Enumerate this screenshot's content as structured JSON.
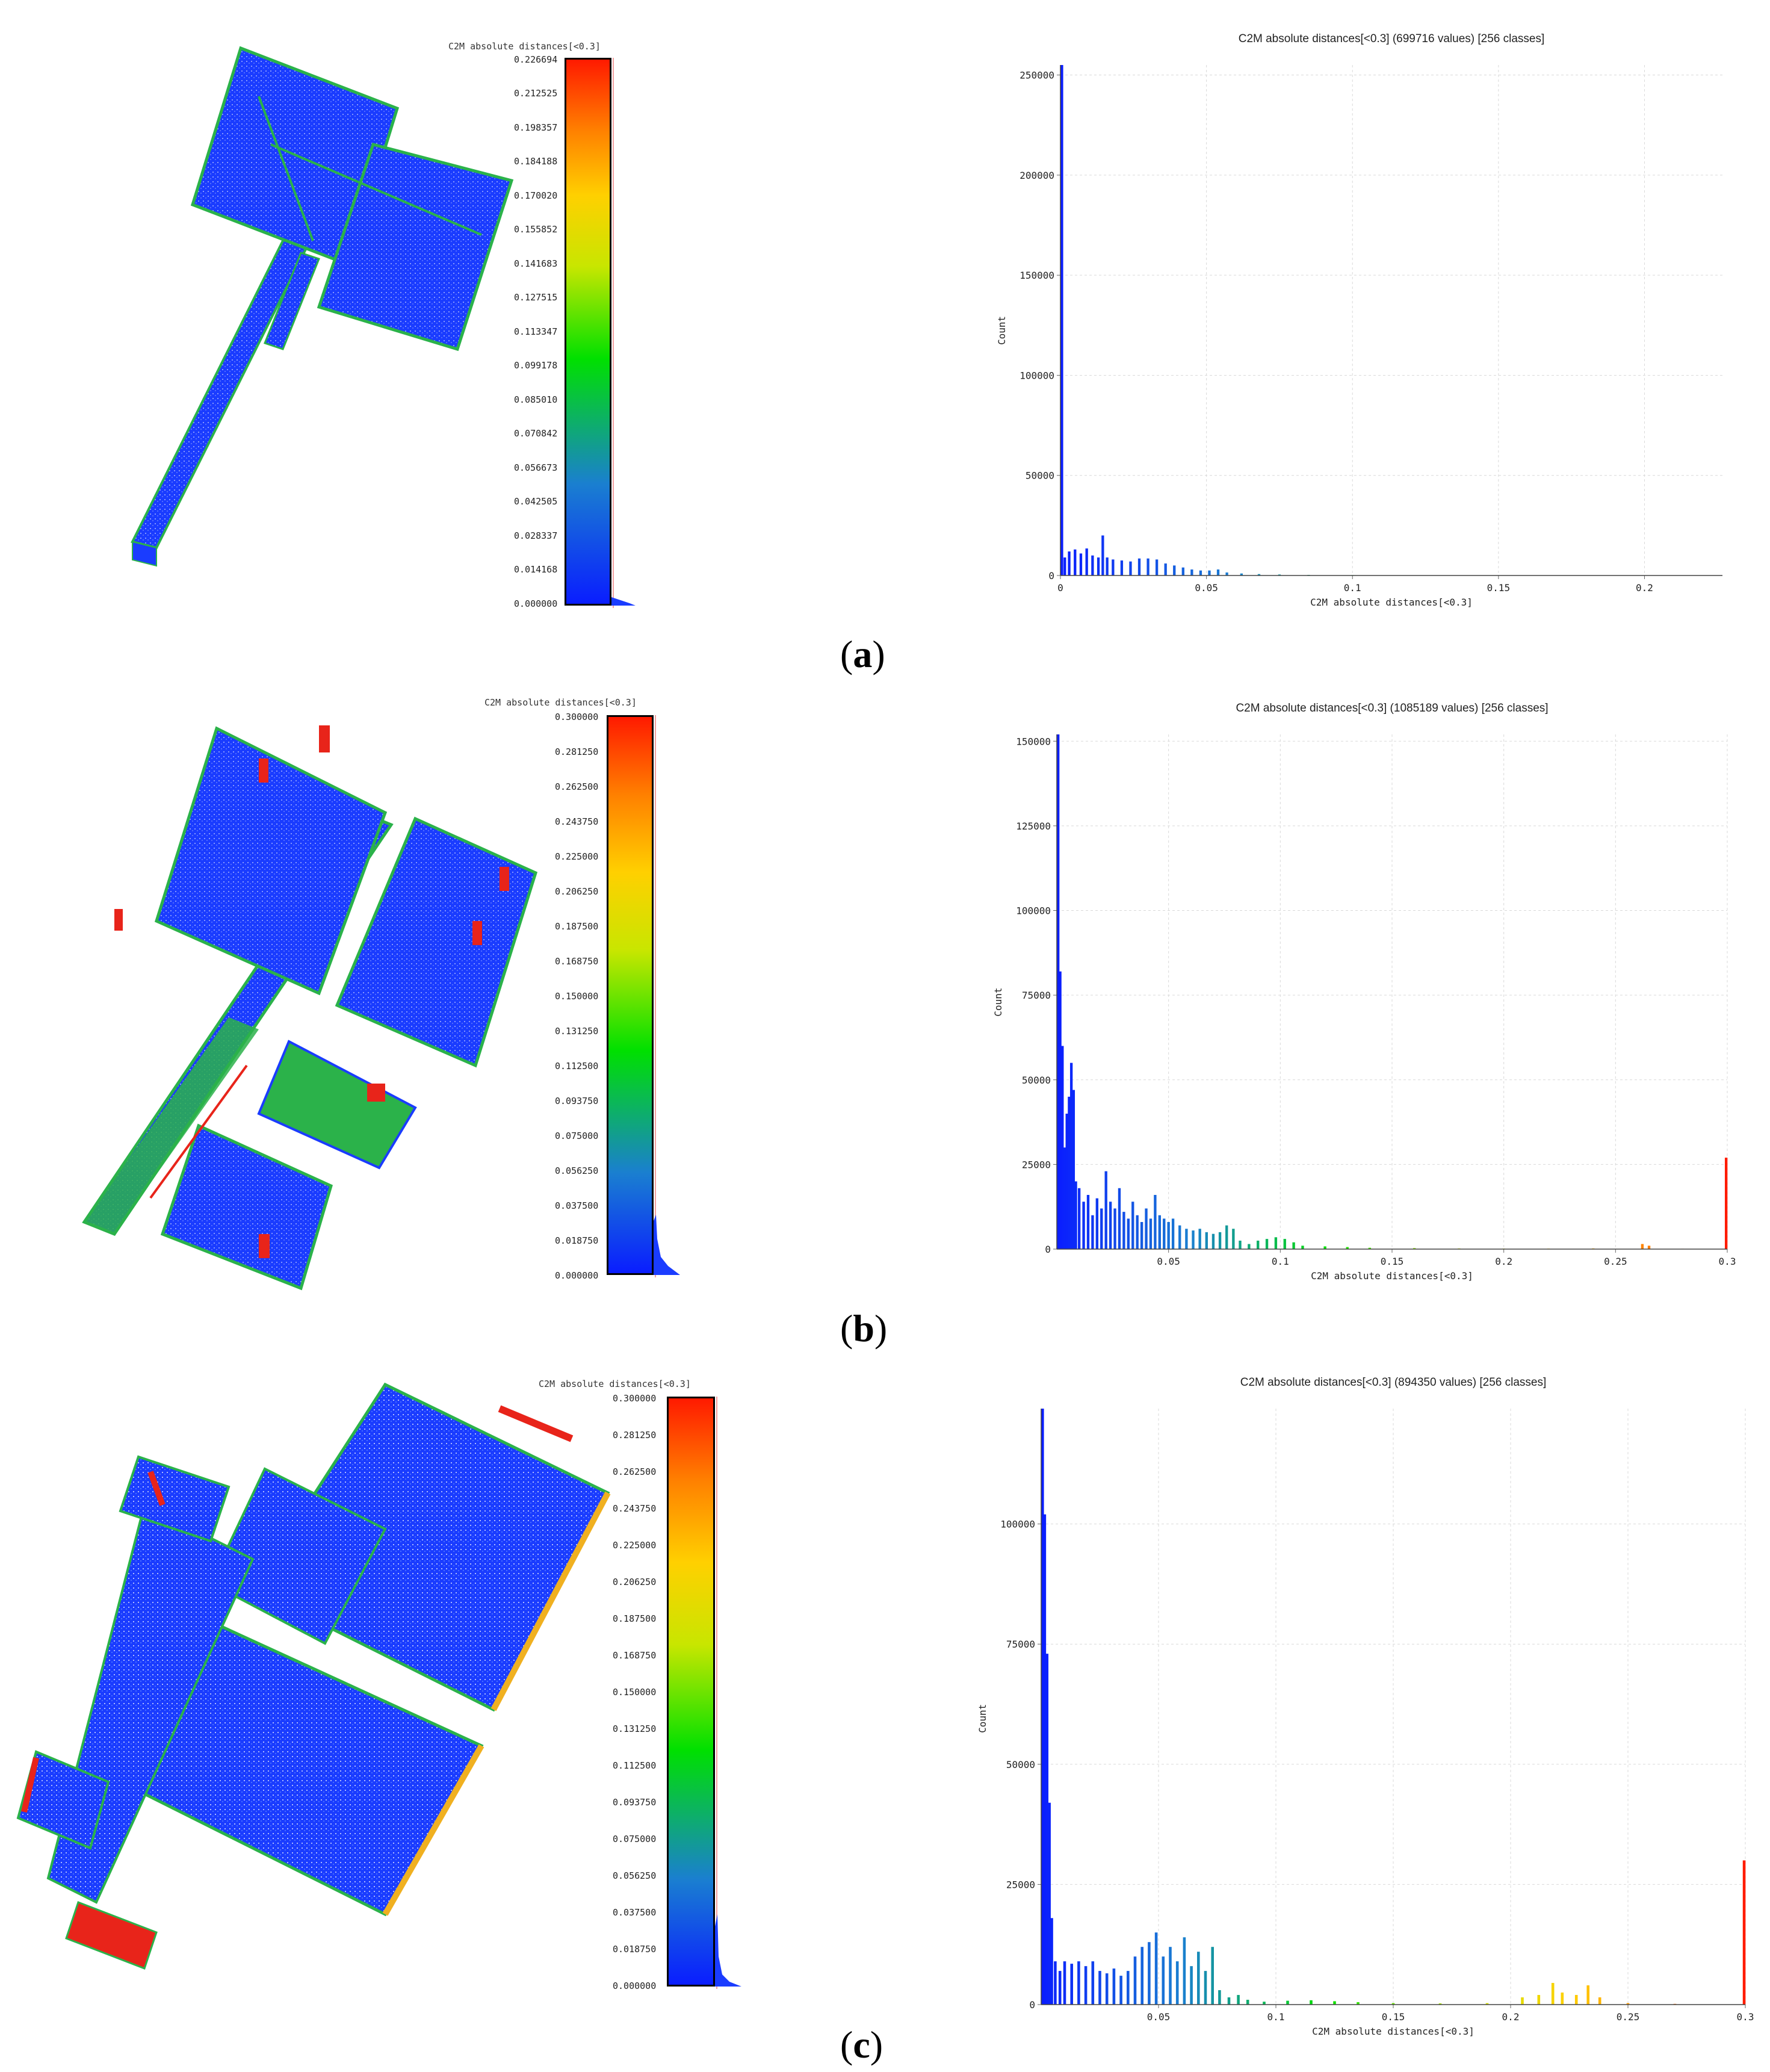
{
  "figure": {
    "captions": [
      {
        "open": "(",
        "letter": "a",
        "close": ")"
      },
      {
        "open": "(",
        "letter": "b",
        "close": ")"
      },
      {
        "open": "(",
        "letter": "c",
        "close": ")"
      }
    ]
  },
  "colors": {
    "scale_gradient": [
      "#0a1dff",
      "#1a7fd0",
      "#00e000",
      "#c8e600",
      "#ffd000",
      "#ff8000",
      "#ff1a00"
    ],
    "model_blue": "#1a3cff",
    "model_green": "#2bb24a",
    "model_red": "#e8241a",
    "grid": "#d9d9d9"
  },
  "panels": [
    {
      "scale": {
        "title": "C2M absolute distances[<0.3]",
        "ticks": [
          "0.226694",
          "0.212525",
          "0.198357",
          "0.184188",
          "0.170020",
          "0.155852",
          "0.141683",
          "0.127515",
          "0.113347",
          "0.099178",
          "0.085010",
          "0.070842",
          "0.056673",
          "0.042505",
          "0.028337",
          "0.014168",
          "0.000000"
        ]
      }
    },
    {
      "scale": {
        "title": "C2M absolute distances[<0.3]",
        "ticks": [
          "0.300000",
          "0.281250",
          "0.262500",
          "0.243750",
          "0.225000",
          "0.206250",
          "0.187500",
          "0.168750",
          "0.150000",
          "0.131250",
          "0.112500",
          "0.093750",
          "0.075000",
          "0.056250",
          "0.037500",
          "0.018750",
          "0.000000"
        ]
      }
    },
    {
      "scale": {
        "title": "C2M absolute distances[<0.3]",
        "ticks": [
          "0.300000",
          "0.281250",
          "0.262500",
          "0.243750",
          "0.225000",
          "0.206250",
          "0.187500",
          "0.168750",
          "0.150000",
          "0.131250",
          "0.112500",
          "0.093750",
          "0.075000",
          "0.056250",
          "0.037500",
          "0.018750",
          "0.000000"
        ]
      }
    }
  ],
  "chart_data": [
    {
      "type": "bar",
      "title": "C2M absolute distances[<0.3] (699716 values)  [256 classes]",
      "xlabel": "C2M absolute distances[<0.3]",
      "ylabel": "Count",
      "xlim": [
        0,
        0.226694
      ],
      "ylim": [
        0,
        255000
      ],
      "xticks": [
        0,
        0.05,
        0.1,
        0.15,
        0.2
      ],
      "xtick_labels": [
        "0",
        "0.05",
        "0.1",
        "0.15",
        "0.2"
      ],
      "yticks": [
        0,
        50000,
        100000,
        150000,
        200000,
        250000
      ],
      "ytick_labels": [
        "0",
        "50000",
        "100000",
        "150000",
        "200000",
        "250000"
      ],
      "grid": true,
      "bins": [
        {
          "x": 0.0005,
          "y": 255000
        },
        {
          "x": 0.0015,
          "y": 9000
        },
        {
          "x": 0.003,
          "y": 12000
        },
        {
          "x": 0.005,
          "y": 13000
        },
        {
          "x": 0.007,
          "y": 11000
        },
        {
          "x": 0.009,
          "y": 13500
        },
        {
          "x": 0.011,
          "y": 10000
        },
        {
          "x": 0.013,
          "y": 9000
        },
        {
          "x": 0.0145,
          "y": 20000
        },
        {
          "x": 0.016,
          "y": 9000
        },
        {
          "x": 0.018,
          "y": 8000
        },
        {
          "x": 0.021,
          "y": 7500
        },
        {
          "x": 0.024,
          "y": 7000
        },
        {
          "x": 0.027,
          "y": 8500
        },
        {
          "x": 0.03,
          "y": 8500
        },
        {
          "x": 0.033,
          "y": 8000
        },
        {
          "x": 0.036,
          "y": 6000
        },
        {
          "x": 0.039,
          "y": 5000
        },
        {
          "x": 0.042,
          "y": 4000
        },
        {
          "x": 0.045,
          "y": 3000
        },
        {
          "x": 0.048,
          "y": 2500
        },
        {
          "x": 0.051,
          "y": 2500
        },
        {
          "x": 0.054,
          "y": 3000
        },
        {
          "x": 0.057,
          "y": 1500
        },
        {
          "x": 0.062,
          "y": 1000
        },
        {
          "x": 0.068,
          "y": 700
        },
        {
          "x": 0.075,
          "y": 500
        },
        {
          "x": 0.085,
          "y": 300
        },
        {
          "x": 0.1,
          "y": 200
        },
        {
          "x": 0.12,
          "y": 120
        },
        {
          "x": 0.15,
          "y": 80
        },
        {
          "x": 0.18,
          "y": 60
        },
        {
          "x": 0.21,
          "y": 40
        }
      ]
    },
    {
      "type": "bar",
      "title": "C2M absolute distances[<0.3] (1085189 values)  [256 classes]",
      "xlabel": "C2M absolute distances[<0.3]",
      "ylabel": "Count",
      "xlim": [
        0,
        0.3
      ],
      "ylim": [
        0,
        152000
      ],
      "xticks": [
        0.05,
        0.1,
        0.15,
        0.2,
        0.25,
        0.3
      ],
      "xtick_labels": [
        "0.05",
        "0.1",
        "0.15",
        "0.2",
        "0.25",
        "0.3"
      ],
      "yticks": [
        0,
        25000,
        50000,
        75000,
        100000,
        125000,
        150000
      ],
      "ytick_labels": [
        "0",
        "25000",
        "50000",
        "75000",
        "100000",
        "125000",
        "150000"
      ],
      "grid": true,
      "bins": [
        {
          "x": 0.0005,
          "y": 152000
        },
        {
          "x": 0.0015,
          "y": 82000
        },
        {
          "x": 0.0025,
          "y": 60000
        },
        {
          "x": 0.0035,
          "y": 30000
        },
        {
          "x": 0.0045,
          "y": 40000
        },
        {
          "x": 0.0055,
          "y": 45000
        },
        {
          "x": 0.0065,
          "y": 55000
        },
        {
          "x": 0.0075,
          "y": 47000
        },
        {
          "x": 0.0085,
          "y": 20000
        },
        {
          "x": 0.01,
          "y": 18000
        },
        {
          "x": 0.012,
          "y": 14000
        },
        {
          "x": 0.014,
          "y": 16000
        },
        {
          "x": 0.016,
          "y": 10000
        },
        {
          "x": 0.018,
          "y": 15000
        },
        {
          "x": 0.02,
          "y": 12000
        },
        {
          "x": 0.022,
          "y": 23000
        },
        {
          "x": 0.024,
          "y": 14000
        },
        {
          "x": 0.026,
          "y": 12000
        },
        {
          "x": 0.028,
          "y": 18000
        },
        {
          "x": 0.03,
          "y": 11000
        },
        {
          "x": 0.032,
          "y": 9000
        },
        {
          "x": 0.034,
          "y": 14000
        },
        {
          "x": 0.036,
          "y": 10000
        },
        {
          "x": 0.038,
          "y": 8000
        },
        {
          "x": 0.04,
          "y": 12000
        },
        {
          "x": 0.042,
          "y": 9000
        },
        {
          "x": 0.044,
          "y": 16000
        },
        {
          "x": 0.046,
          "y": 10000
        },
        {
          "x": 0.048,
          "y": 9000
        },
        {
          "x": 0.05,
          "y": 8000
        },
        {
          "x": 0.052,
          "y": 9000
        },
        {
          "x": 0.055,
          "y": 7000
        },
        {
          "x": 0.058,
          "y": 6000
        },
        {
          "x": 0.061,
          "y": 5500
        },
        {
          "x": 0.064,
          "y": 6000
        },
        {
          "x": 0.067,
          "y": 5000
        },
        {
          "x": 0.07,
          "y": 4500
        },
        {
          "x": 0.073,
          "y": 5000
        },
        {
          "x": 0.076,
          "y": 7000
        },
        {
          "x": 0.079,
          "y": 6000
        },
        {
          "x": 0.082,
          "y": 2500
        },
        {
          "x": 0.086,
          "y": 1500
        },
        {
          "x": 0.09,
          "y": 2500
        },
        {
          "x": 0.094,
          "y": 3000
        },
        {
          "x": 0.098,
          "y": 3500
        },
        {
          "x": 0.102,
          "y": 3000
        },
        {
          "x": 0.106,
          "y": 2000
        },
        {
          "x": 0.11,
          "y": 1000
        },
        {
          "x": 0.12,
          "y": 800
        },
        {
          "x": 0.13,
          "y": 600
        },
        {
          "x": 0.14,
          "y": 400
        },
        {
          "x": 0.16,
          "y": 300
        },
        {
          "x": 0.18,
          "y": 200
        },
        {
          "x": 0.2,
          "y": 150
        },
        {
          "x": 0.22,
          "y": 150
        },
        {
          "x": 0.24,
          "y": 200
        },
        {
          "x": 0.262,
          "y": 1500
        },
        {
          "x": 0.265,
          "y": 1000
        },
        {
          "x": 0.28,
          "y": 100
        },
        {
          "x": 0.2995,
          "y": 27000
        }
      ]
    },
    {
      "type": "bar",
      "title": "C2M absolute distances[<0.3] (894350 values)  [256 classes]",
      "xlabel": "C2M absolute distances[<0.3]",
      "ylabel": "Count",
      "xlim": [
        0,
        0.3
      ],
      "ylim": [
        0,
        124000
      ],
      "xticks": [
        0.05,
        0.1,
        0.15,
        0.2,
        0.25,
        0.3
      ],
      "xtick_labels": [
        "0.05",
        "0.1",
        "0.15",
        "0.2",
        "0.25",
        "0.3"
      ],
      "yticks": [
        0,
        25000,
        50000,
        75000,
        100000
      ],
      "ytick_labels": [
        "0",
        "25000",
        "50000",
        "75000",
        "100000"
      ],
      "grid": true,
      "bins": [
        {
          "x": 0.0005,
          "y": 124000
        },
        {
          "x": 0.0015,
          "y": 102000
        },
        {
          "x": 0.0025,
          "y": 73000
        },
        {
          "x": 0.0035,
          "y": 42000
        },
        {
          "x": 0.0045,
          "y": 18000
        },
        {
          "x": 0.006,
          "y": 9000
        },
        {
          "x": 0.008,
          "y": 7000
        },
        {
          "x": 0.01,
          "y": 9000
        },
        {
          "x": 0.013,
          "y": 8500
        },
        {
          "x": 0.016,
          "y": 9000
        },
        {
          "x": 0.019,
          "y": 8000
        },
        {
          "x": 0.022,
          "y": 9000
        },
        {
          "x": 0.025,
          "y": 7000
        },
        {
          "x": 0.028,
          "y": 6500
        },
        {
          "x": 0.031,
          "y": 7500
        },
        {
          "x": 0.034,
          "y": 6000
        },
        {
          "x": 0.037,
          "y": 7000
        },
        {
          "x": 0.04,
          "y": 10000
        },
        {
          "x": 0.043,
          "y": 12000
        },
        {
          "x": 0.046,
          "y": 13000
        },
        {
          "x": 0.049,
          "y": 15000
        },
        {
          "x": 0.052,
          "y": 10000
        },
        {
          "x": 0.055,
          "y": 12000
        },
        {
          "x": 0.058,
          "y": 9000
        },
        {
          "x": 0.061,
          "y": 14000
        },
        {
          "x": 0.064,
          "y": 8000
        },
        {
          "x": 0.067,
          "y": 11000
        },
        {
          "x": 0.07,
          "y": 7000
        },
        {
          "x": 0.073,
          "y": 12000
        },
        {
          "x": 0.076,
          "y": 3000
        },
        {
          "x": 0.08,
          "y": 1500
        },
        {
          "x": 0.084,
          "y": 2000
        },
        {
          "x": 0.088,
          "y": 1000
        },
        {
          "x": 0.095,
          "y": 600
        },
        {
          "x": 0.105,
          "y": 800
        },
        {
          "x": 0.115,
          "y": 900
        },
        {
          "x": 0.125,
          "y": 700
        },
        {
          "x": 0.135,
          "y": 500
        },
        {
          "x": 0.15,
          "y": 300
        },
        {
          "x": 0.17,
          "y": 250
        },
        {
          "x": 0.19,
          "y": 300
        },
        {
          "x": 0.205,
          "y": 1500
        },
        {
          "x": 0.212,
          "y": 2000
        },
        {
          "x": 0.218,
          "y": 4500
        },
        {
          "x": 0.222,
          "y": 2500
        },
        {
          "x": 0.228,
          "y": 2000
        },
        {
          "x": 0.233,
          "y": 4000
        },
        {
          "x": 0.238,
          "y": 1500
        },
        {
          "x": 0.25,
          "y": 300
        },
        {
          "x": 0.27,
          "y": 150
        },
        {
          "x": 0.2995,
          "y": 30000
        }
      ]
    }
  ]
}
